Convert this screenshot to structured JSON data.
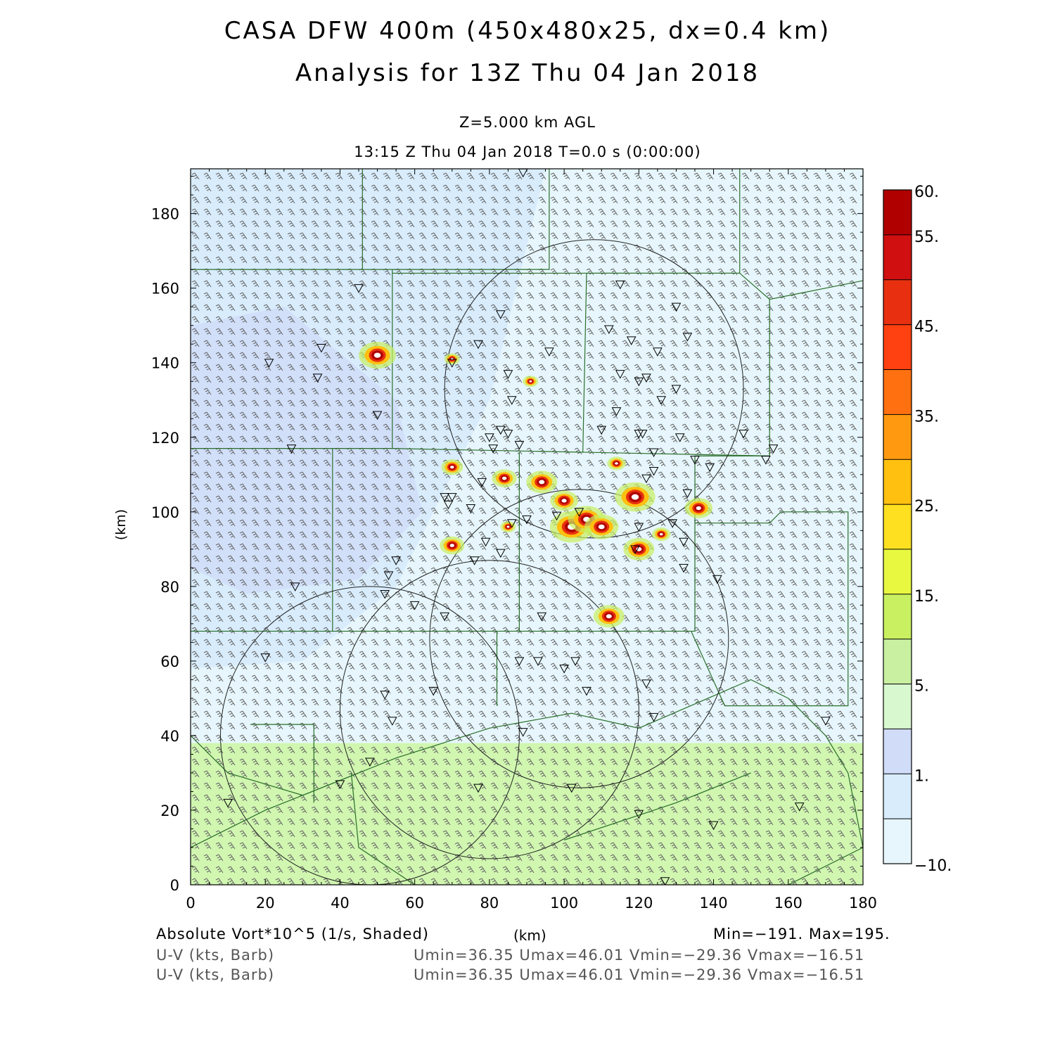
{
  "header": {
    "title_line1": "CASA DFW 400m (450x480x25, dx=0.4 km)",
    "title_line2": "Analysis for 13Z Thu 04 Jan 2018",
    "level": "Z=5.000 km AGL",
    "time": "13:15 Z Thu 04 Jan 2018    T=0.0 s (0:00:00)"
  },
  "axes": {
    "x_ticks": [
      "0",
      "20",
      "40",
      "60",
      "80",
      "100",
      "120",
      "140",
      "160",
      "180"
    ],
    "y_ticks": [
      "0",
      "20",
      "40",
      "60",
      "80",
      "100",
      "120",
      "140",
      "160",
      "180"
    ],
    "xlabel": "(km)",
    "ylabel": "(km)",
    "xlim": [
      0,
      180
    ],
    "ylim": [
      0,
      192
    ]
  },
  "colorbar": {
    "labels": [
      "60.",
      "55.",
      "45.",
      "35.",
      "25.",
      "15.",
      "5.",
      "1.",
      "−10."
    ],
    "colors": [
      "#b00000",
      "#d01010",
      "#e83010",
      "#ff4010",
      "#ff7010",
      "#ff9a10",
      "#ffc010",
      "#ffe020",
      "#e8f840",
      "#c8f060",
      "#c8f0a0",
      "#d8f8d0",
      "#d0dcf8",
      "#d8ecfc",
      "#e6f6fc"
    ]
  },
  "footer": {
    "field1_label": "Absolute Vort*10^5 (1/s, Shaded)",
    "field1_minmax": "Min=−191. Max=195.",
    "field2_label": "U-V (kts, Barb)",
    "field2_stats": "Umin=36.35 Umax=46.01 Vmin=−29.36 Vmax=−16.51",
    "field3_label": "U-V (kts, Barb)",
    "field3_stats": "Umin=36.35 Umax=46.01 Vmin=−29.36 Vmax=−16.51"
  },
  "map_features": {
    "shading_colors": {
      "background": "#e6f6fc",
      "light_blue": "#d8ecfc",
      "lavender": "#d0dcf8",
      "green": "#d0f6b0",
      "county_line": "#2a6e2a"
    },
    "radar_rings": 4,
    "station_marker": "triangle-down-icon",
    "wind_barb": "wind-barb-icon"
  }
}
